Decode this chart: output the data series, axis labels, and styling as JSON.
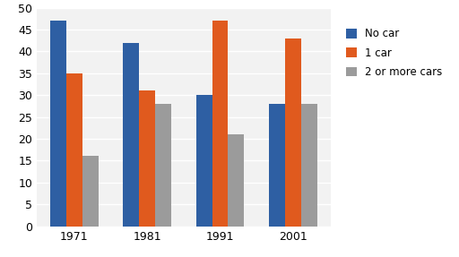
{
  "years": [
    "1971",
    "1981",
    "1991",
    "2001"
  ],
  "series": {
    "No car": [
      47,
      42,
      30,
      28
    ],
    "1 car": [
      35,
      31,
      47,
      43
    ],
    "2 or more cars": [
      16,
      28,
      21,
      28
    ]
  },
  "colors": {
    "No car": "#2E5FA3",
    "1 car": "#E05A1E",
    "2 or more cars": "#9B9B9B"
  },
  "ylim": [
    0,
    50
  ],
  "yticks": [
    0,
    5,
    10,
    15,
    20,
    25,
    30,
    35,
    40,
    45,
    50
  ],
  "legend_labels": [
    "No car",
    "1 car",
    "2 or more cars"
  ],
  "bar_width": 0.22,
  "background_color": "#FFFFFF",
  "plot_bg_color": "#F2F2F2",
  "grid_color": "#FFFFFF"
}
